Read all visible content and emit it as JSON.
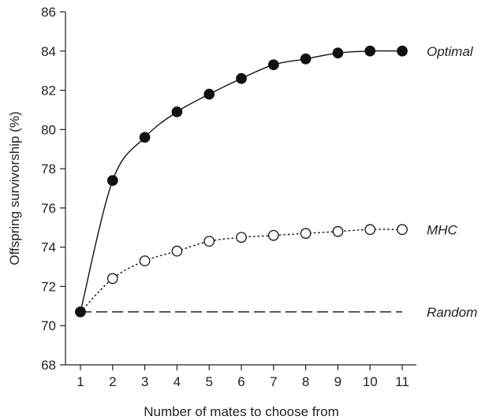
{
  "chart_data": {
    "type": "line",
    "title": "",
    "xlabel": "Number of mates to choose from",
    "ylabel": "Offspring survivorship (%)",
    "x": [
      1,
      2,
      3,
      4,
      5,
      6,
      7,
      8,
      9,
      10,
      11
    ],
    "xlim": [
      1,
      11
    ],
    "ylim": [
      68,
      86
    ],
    "yticks": [
      68,
      70,
      72,
      74,
      76,
      78,
      80,
      82,
      84,
      86
    ],
    "grid": false,
    "series": [
      {
        "name": "Optimal",
        "values": [
          70.7,
          77.4,
          79.6,
          80.9,
          81.8,
          82.6,
          83.3,
          83.6,
          83.9,
          84.0,
          84.0
        ],
        "line_style": "solid",
        "marker": "filled-circle",
        "color": "#111111"
      },
      {
        "name": "MHC",
        "values": [
          70.7,
          72.4,
          73.3,
          73.8,
          74.3,
          74.5,
          74.6,
          74.7,
          74.8,
          74.9,
          74.9
        ],
        "line_style": "dotted",
        "marker": "open-circle",
        "color": "#111111"
      },
      {
        "name": "Random",
        "values": [
          70.7,
          70.7,
          70.7,
          70.7,
          70.7,
          70.7,
          70.7,
          70.7,
          70.7,
          70.7,
          70.7
        ],
        "line_style": "dashed",
        "marker": "none",
        "color": "#111111"
      }
    ]
  }
}
